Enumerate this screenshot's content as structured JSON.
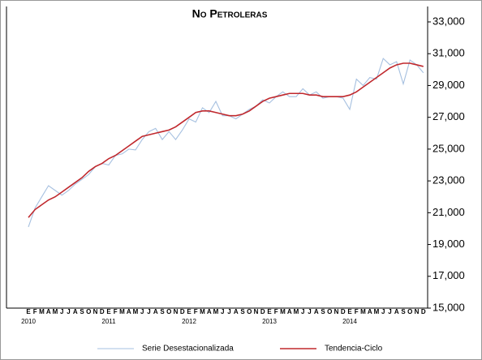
{
  "chart_data": {
    "type": "line",
    "title": "No Petroleras",
    "categories": [
      "E",
      "F",
      "M",
      "A",
      "M",
      "J",
      "J",
      "A",
      "S",
      "O",
      "N",
      "D",
      "E",
      "F",
      "M",
      "A",
      "M",
      "J",
      "J",
      "A",
      "S",
      "O",
      "N",
      "D",
      "E",
      "F",
      "M",
      "A",
      "M",
      "J",
      "J",
      "A",
      "S",
      "O",
      "N",
      "D",
      "E",
      "F",
      "M",
      "A",
      "M",
      "J",
      "J",
      "A",
      "S",
      "O",
      "N",
      "D",
      "E",
      "F",
      "M",
      "A",
      "M",
      "J",
      "J",
      "A",
      "S",
      "O",
      "N",
      "D"
    ],
    "years": [
      "2010",
      "2011",
      "2012",
      "2013",
      "2014"
    ],
    "series": [
      {
        "name": "Serie Desestacionalizada",
        "color": "#a6c0e0",
        "values": [
          20100,
          21300,
          22000,
          22700,
          22400,
          22100,
          22400,
          22800,
          23100,
          23400,
          23900,
          24100,
          24000,
          24600,
          24700,
          25000,
          24950,
          25600,
          26100,
          26300,
          25600,
          26100,
          25600,
          26200,
          26900,
          26700,
          27600,
          27300,
          28000,
          27100,
          27100,
          26900,
          27200,
          27500,
          27700,
          28100,
          27900,
          28300,
          28600,
          28300,
          28300,
          28800,
          28400,
          28600,
          28200,
          28300,
          28300,
          28200,
          27500,
          29400,
          29000,
          29500,
          29400,
          30700,
          30300,
          30500,
          29100,
          30600,
          30300,
          29800
        ]
      },
      {
        "name": "Tendencia-Ciclo",
        "color": "#c0282d",
        "values": [
          20700,
          21200,
          21500,
          21800,
          22000,
          22300,
          22600,
          22900,
          23200,
          23600,
          23900,
          24100,
          24400,
          24600,
          24900,
          25200,
          25500,
          25800,
          25900,
          26000,
          26100,
          26200,
          26400,
          26700,
          27000,
          27300,
          27400,
          27400,
          27300,
          27200,
          27100,
          27100,
          27200,
          27400,
          27700,
          28000,
          28200,
          28300,
          28400,
          28500,
          28500,
          28500,
          28400,
          28400,
          28300,
          28300,
          28300,
          28300,
          28400,
          28600,
          28900,
          29200,
          29500,
          29800,
          30100,
          30300,
          30400,
          30400,
          30300,
          30200
        ]
      }
    ],
    "ylim": [
      15000,
      33000
    ],
    "yticks": [
      {
        "value": 15000,
        "label": "15,000"
      },
      {
        "value": 17000,
        "label": "17,000"
      },
      {
        "value": 19000,
        "label": "19,000"
      },
      {
        "value": 21000,
        "label": "21,000"
      },
      {
        "value": 23000,
        "label": "23,000"
      },
      {
        "value": 25000,
        "label": "25,000"
      },
      {
        "value": 27000,
        "label": "27,000"
      },
      {
        "value": 29000,
        "label": "29,000"
      },
      {
        "value": 31000,
        "label": "31,000"
      },
      {
        "value": 33000,
        "label": "33,000"
      }
    ],
    "y_axis_side": "right",
    "grid": false,
    "legend": "bottom"
  }
}
